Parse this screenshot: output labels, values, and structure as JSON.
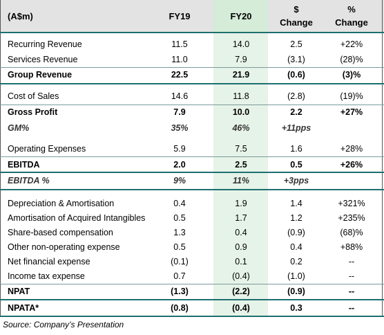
{
  "header": {
    "label": "(A$m)",
    "fy19": "FY19",
    "fy20": "FY20",
    "dollar_top": "$",
    "dollar_bottom": "Change",
    "pct_top": "%",
    "pct_bottom": "Change"
  },
  "rows": [
    {
      "label": "Recurring Revenue",
      "fy19": "11.5",
      "fy20": "14.0",
      "dchg": "2.5",
      "pchg": "+22%"
    },
    {
      "label": "Services Revenue",
      "fy19": "11.0",
      "fy20": "7.9",
      "dchg": "(3.1)",
      "pchg": "(28)%"
    },
    {
      "label": "Group Revenue",
      "fy19": "22.5",
      "fy20": "21.9",
      "dchg": "(0.6)",
      "pchg": "(3)%"
    },
    {
      "label": "Cost of Sales",
      "fy19": "14.6",
      "fy20": "11.8",
      "dchg": "(2.8)",
      "pchg": "(19)%"
    },
    {
      "label": "Gross Profit",
      "fy19": "7.9",
      "fy20": "10.0",
      "dchg": "2.2",
      "pchg": "+27%"
    },
    {
      "label": "GM%",
      "fy19": "35%",
      "fy20": "46%",
      "dchg": "+11pps",
      "pchg": ""
    },
    {
      "label": "Operating Expenses",
      "fy19": "5.9",
      "fy20": "7.5",
      "dchg": "1.6",
      "pchg": "+28%"
    },
    {
      "label": "EBITDA",
      "fy19": "2.0",
      "fy20": "2.5",
      "dchg": "0.5",
      "pchg": "+26%"
    },
    {
      "label": "EBITDA %",
      "fy19": "9%",
      "fy20": "11%",
      "dchg": "+3pps",
      "pchg": ""
    },
    {
      "label": "Depreciation & Amortisation",
      "fy19": "0.4",
      "fy20": "1.9",
      "dchg": "1.4",
      "pchg": "+321%"
    },
    {
      "label": "Amortisation of Acquired Intangibles",
      "fy19": "0.5",
      "fy20": "1.7",
      "dchg": "1.2",
      "pchg": "+235%"
    },
    {
      "label": "Share-based compensation",
      "fy19": "1.3",
      "fy20": "0.4",
      "dchg": "(0.9)",
      "pchg": "(68)%"
    },
    {
      "label": "Other non-operating expense",
      "fy19": "0.5",
      "fy20": "0.9",
      "dchg": "0.4",
      "pchg": "+88%"
    },
    {
      "label": "Net financial expense",
      "fy19": "(0.1)",
      "fy20": "0.1",
      "dchg": "0.2",
      "pchg": "--"
    },
    {
      "label": "Income tax expense",
      "fy19": "0.7",
      "fy20": "(0.4)",
      "dchg": "(1.0)",
      "pchg": "--"
    },
    {
      "label": "NPAT",
      "fy19": "(1.3)",
      "fy20": "(2.2)",
      "dchg": "(0.9)",
      "pchg": "--"
    },
    {
      "label": "NPATA*",
      "fy19": "(0.8)",
      "fy20": "(0.4)",
      "dchg": "0.3",
      "pchg": "--"
    }
  ],
  "source": "Source: Company’s Presentation"
}
